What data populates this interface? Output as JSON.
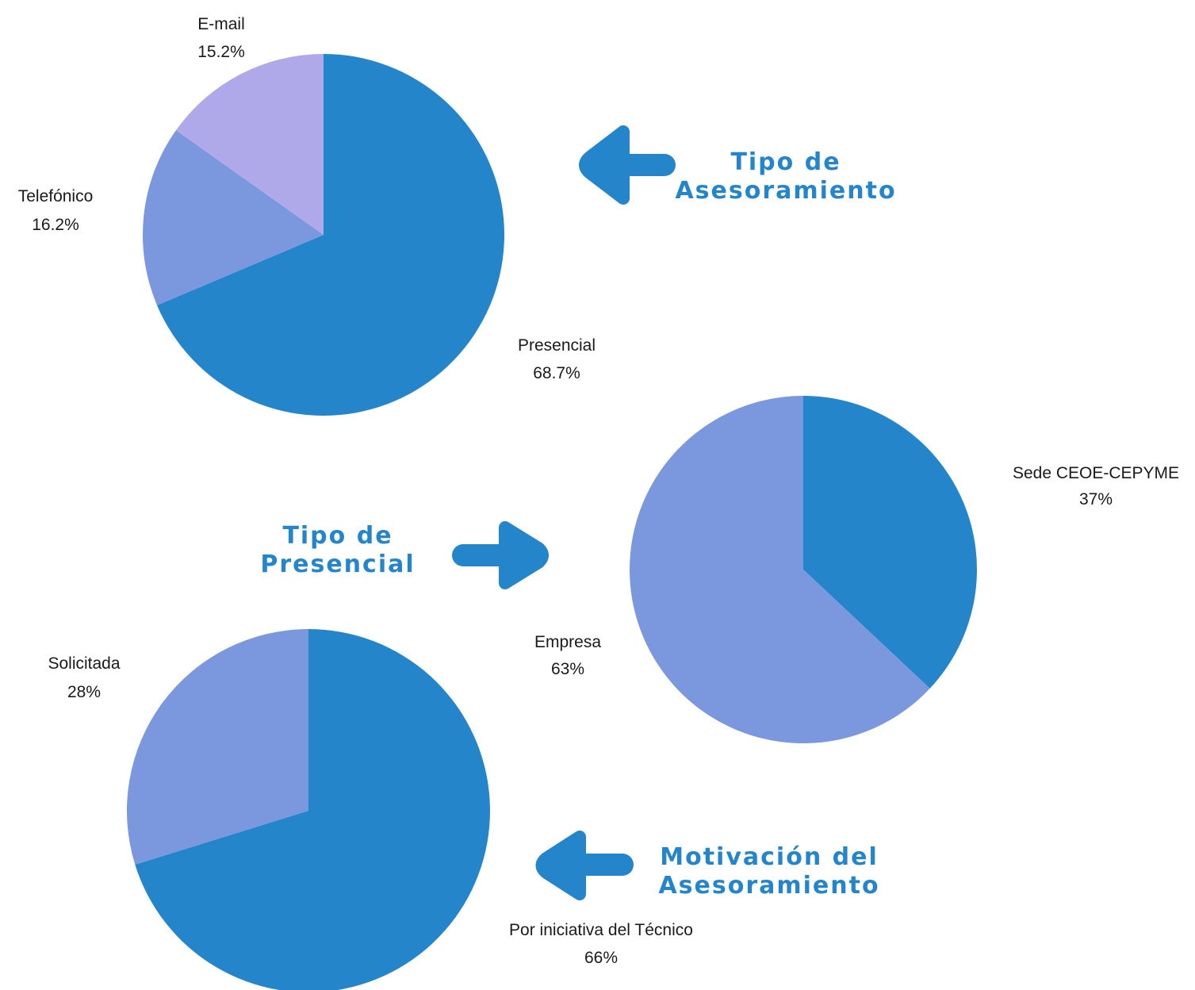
{
  "colors": {
    "primary_blue": "#2585CB",
    "medium_blue": "#7B98DF",
    "lavender": "#AFA9EA",
    "heading_blue": "#2585CB",
    "arrow_blue": "#2585CB"
  },
  "headings": {
    "tipo_asesoramiento": [
      "Tipo de",
      "Asesoramiento"
    ],
    "tipo_presencial": [
      "Tipo de",
      "Presencial"
    ],
    "motivacion": [
      "Motivación del",
      "Asesoramiento"
    ]
  },
  "chart_data": [
    {
      "type": "pie",
      "id": "tipo-asesoramiento",
      "title": "",
      "slices": [
        {
          "label": "Presencial",
          "value": 68.7,
          "display": "68.7%",
          "color": "#2585CB"
        },
        {
          "label": "Telefónico",
          "value": 16.2,
          "display": "16.2%",
          "color": "#7B98DF"
        },
        {
          "label": "E-mail",
          "value": 15.2,
          "display": "15.2%",
          "color": "#AFA9EA"
        }
      ]
    },
    {
      "type": "pie",
      "id": "tipo-presencial",
      "title": "",
      "slices": [
        {
          "label": "Sede CEOE-CEPYME",
          "value": 37,
          "display": "37%",
          "color": "#2585CB"
        },
        {
          "label": "Empresa",
          "value": 63,
          "display": "63%",
          "color": "#7B98DF"
        }
      ]
    },
    {
      "type": "pie",
      "id": "motivacion-asesoramiento",
      "title": "",
      "slices": [
        {
          "label": "Por iniciativa del Técnico",
          "value": 66,
          "display": "66%",
          "color": "#2585CB"
        },
        {
          "label": "Solicitada",
          "value": 28,
          "display": "28%",
          "color": "#7B98DF"
        }
      ]
    }
  ]
}
